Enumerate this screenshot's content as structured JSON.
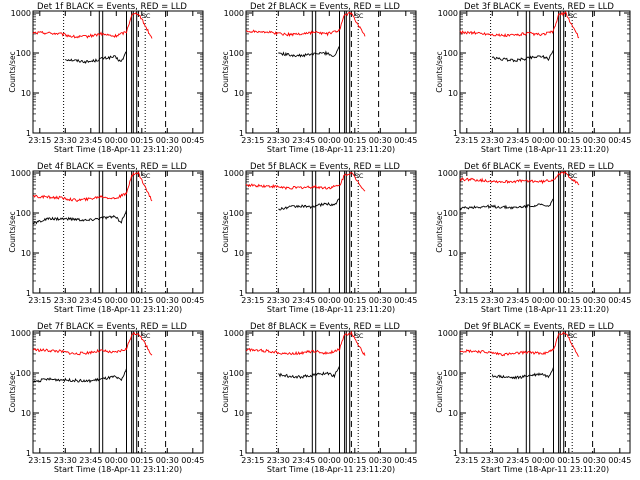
{
  "time_ticks": [
    "23:15",
    "23:30",
    "23:45",
    "00:00",
    "00:15",
    "00:30",
    "00:45"
  ],
  "start_time_label": "Start Time (18-Apr-11 23:11:20)",
  "y_label": "Counts/sec",
  "y_tick_labels": [
    "1",
    "10",
    "100",
    "1000"
  ],
  "sc_label": "SC",
  "colors": {
    "events": "#000000",
    "lld": "#ff0000",
    "frame": "#000000"
  },
  "chart_data": [
    {
      "type": "line",
      "title": "Det 1f BLACK = Events, RED = LLD",
      "xlabel": "Start Time (18-Apr-11 23:11:20)",
      "ylabel": "Counts/sec",
      "x_range_min": [
        0,
        40
      ],
      "ylim": [
        1,
        1000
      ],
      "y_scale": "log",
      "series": [
        {
          "name": "Events",
          "x": [
            19,
            25,
            32,
            37,
            40,
            48,
            52,
            55
          ],
          "values": [
            70,
            65,
            60,
            65,
            72,
            80,
            60,
            110
          ]
        },
        {
          "name": "LLD",
          "x": [
            0,
            8,
            16,
            25,
            32,
            40,
            48,
            55,
            58,
            62,
            70
          ],
          "values": [
            320,
            320,
            300,
            250,
            260,
            300,
            260,
            340,
            900,
            1000,
            230
          ]
        }
      ],
      "markers": {
        "dotted": [
          18,
          66
        ],
        "boxes": [
          [
            39,
            41
          ],
          [
            55,
            58
          ],
          [
            59,
            61
          ]
        ],
        "dashed": [
          62,
          78
        ]
      }
    },
    {
      "type": "line",
      "title": "Det 2f BLACK = Events, RED = LLD",
      "xlabel": "Start Time (18-Apr-11 23:11:20)",
      "ylabel": "Counts/sec",
      "x_range_min": [
        0,
        40
      ],
      "ylim": [
        1,
        1000
      ],
      "y_scale": "log",
      "series": [
        {
          "name": "Events",
          "x": [
            19,
            25,
            32,
            37,
            40,
            48,
            52,
            55
          ],
          "values": [
            100,
            90,
            85,
            90,
            95,
            100,
            80,
            150
          ]
        },
        {
          "name": "LLD",
          "x": [
            0,
            8,
            16,
            25,
            32,
            40,
            48,
            55,
            58,
            62,
            70
          ],
          "values": [
            350,
            350,
            320,
            290,
            300,
            330,
            300,
            370,
            900,
            1000,
            260
          ]
        }
      ],
      "markers": {
        "dotted": [
          18,
          66
        ],
        "boxes": [
          [
            39,
            41
          ],
          [
            55,
            58
          ],
          [
            59,
            61
          ]
        ],
        "dashed": [
          62,
          78
        ]
      }
    },
    {
      "type": "line",
      "title": "Det 3f BLACK = Events, RED = LLD",
      "xlabel": "Start Time (18-Apr-11 23:11:20)",
      "ylabel": "Counts/sec",
      "x_range_min": [
        0,
        40
      ],
      "ylim": [
        1,
        1000
      ],
      "y_scale": "log",
      "series": [
        {
          "name": "Events",
          "x": [
            19,
            25,
            32,
            37,
            40,
            48,
            52,
            55
          ],
          "values": [
            75,
            70,
            65,
            70,
            75,
            85,
            70,
            120
          ]
        },
        {
          "name": "LLD",
          "x": [
            0,
            8,
            16,
            25,
            32,
            40,
            48,
            55,
            58,
            62,
            70
          ],
          "values": [
            330,
            320,
            300,
            270,
            280,
            310,
            280,
            350,
            900,
            1000,
            240
          ]
        }
      ],
      "markers": {
        "dotted": [
          18,
          66
        ],
        "boxes": [
          [
            39,
            41
          ],
          [
            55,
            58
          ],
          [
            59,
            61
          ]
        ],
        "dashed": [
          62,
          78
        ]
      }
    },
    {
      "type": "line",
      "title": "Det 4f BLACK = Events, RED = LLD",
      "xlabel": "Start Time (18-Apr-11 23:11:20)",
      "ylabel": "Counts/sec",
      "x_range_min": [
        0,
        40
      ],
      "ylim": [
        1,
        1000
      ],
      "y_scale": "log",
      "series": [
        {
          "name": "Events",
          "x": [
            0,
            8,
            16,
            25,
            32,
            40,
            48,
            52,
            55
          ],
          "values": [
            55,
            70,
            72,
            70,
            65,
            75,
            80,
            60,
            120
          ]
        },
        {
          "name": "LLD",
          "x": [
            0,
            8,
            16,
            25,
            32,
            40,
            48,
            55,
            58,
            62,
            70
          ],
          "values": [
            260,
            250,
            240,
            210,
            220,
            260,
            230,
            300,
            900,
            1000,
            200
          ]
        }
      ],
      "markers": {
        "dotted": [
          18,
          66
        ],
        "boxes": [
          [
            39,
            41
          ],
          [
            55,
            58
          ],
          [
            59,
            61
          ]
        ],
        "dashed": [
          62,
          78
        ]
      }
    },
    {
      "type": "line",
      "title": "Det 5f BLACK = Events, RED = LLD",
      "xlabel": "Start Time (18-Apr-11 23:11:20)",
      "ylabel": "Counts/sec",
      "x_range_min": [
        0,
        40
      ],
      "ylim": [
        1,
        1000
      ],
      "y_scale": "log",
      "series": [
        {
          "name": "Events",
          "x": [
            19,
            25,
            32,
            37,
            40,
            48,
            52,
            55
          ],
          "values": [
            120,
            140,
            150,
            140,
            150,
            170,
            160,
            220
          ]
        },
        {
          "name": "LLD",
          "x": [
            0,
            8,
            16,
            25,
            32,
            40,
            48,
            55,
            58,
            62,
            70
          ],
          "values": [
            500,
            480,
            460,
            420,
            430,
            450,
            420,
            480,
            900,
            1000,
            350
          ]
        }
      ],
      "markers": {
        "dotted": [
          18,
          66
        ],
        "boxes": [
          [
            39,
            41
          ],
          [
            55,
            58
          ],
          [
            59,
            61
          ]
        ],
        "dashed": [
          62,
          78
        ]
      }
    },
    {
      "type": "line",
      "title": "Det 6f BLACK = Events, RED = LLD",
      "xlabel": "Start Time (18-Apr-11 23:11:20)",
      "ylabel": "Counts/sec",
      "x_range_min": [
        0,
        40
      ],
      "ylim": [
        1,
        1000
      ],
      "y_scale": "log",
      "series": [
        {
          "name": "Events",
          "x": [
            0,
            8,
            16,
            25,
            32,
            40,
            48,
            52,
            55
          ],
          "values": [
            130,
            140,
            145,
            140,
            135,
            150,
            160,
            140,
            230
          ]
        },
        {
          "name": "LLD",
          "x": [
            0,
            8,
            16,
            25,
            32,
            40,
            48,
            55,
            58,
            62,
            70
          ],
          "values": [
            700,
            680,
            640,
            600,
            620,
            640,
            600,
            680,
            950,
            1000,
            500
          ]
        }
      ],
      "markers": {
        "dotted": [
          18,
          66
        ],
        "boxes": [
          [
            39,
            41
          ],
          [
            55,
            58
          ],
          [
            59,
            61
          ]
        ],
        "dashed": [
          62,
          78
        ]
      }
    },
    {
      "type": "line",
      "title": "Det 7f BLACK = Events, RED = LLD",
      "xlabel": "Start Time (18-Apr-11 23:11:20)",
      "ylabel": "Counts/sec",
      "x_range_min": [
        0,
        40
      ],
      "ylim": [
        1,
        1000
      ],
      "y_scale": "log",
      "series": [
        {
          "name": "Events",
          "x": [
            0,
            8,
            16,
            25,
            32,
            40,
            48,
            52,
            55
          ],
          "values": [
            60,
            70,
            68,
            65,
            62,
            70,
            80,
            65,
            130
          ]
        },
        {
          "name": "LLD",
          "x": [
            0,
            8,
            16,
            25,
            32,
            40,
            48,
            55,
            58,
            62,
            70
          ],
          "values": [
            380,
            370,
            350,
            300,
            320,
            360,
            320,
            400,
            900,
            1000,
            280
          ]
        }
      ],
      "markers": {
        "dotted": [
          18,
          66
        ],
        "boxes": [
          [
            39,
            41
          ],
          [
            55,
            58
          ],
          [
            59,
            61
          ]
        ],
        "dashed": [
          62,
          78
        ]
      }
    },
    {
      "type": "line",
      "title": "Det 8f BLACK = Events, RED = LLD",
      "xlabel": "Start Time (18-Apr-11 23:11:20)",
      "ylabel": "Counts/sec",
      "x_range_min": [
        0,
        40
      ],
      "ylim": [
        1,
        1000
      ],
      "y_scale": "log",
      "series": [
        {
          "name": "Events",
          "x": [
            19,
            25,
            32,
            37,
            40,
            48,
            52,
            55
          ],
          "values": [
            90,
            85,
            80,
            85,
            90,
            100,
            85,
            150
          ]
        },
        {
          "name": "LLD",
          "x": [
            0,
            8,
            16,
            25,
            32,
            40,
            48,
            55,
            58,
            62,
            70
          ],
          "values": [
            380,
            370,
            340,
            300,
            320,
            350,
            310,
            390,
            900,
            1000,
            270
          ]
        }
      ],
      "markers": {
        "dotted": [
          18,
          66
        ],
        "boxes": [
          [
            39,
            41
          ],
          [
            55,
            58
          ],
          [
            59,
            61
          ]
        ],
        "dashed": [
          62,
          78
        ]
      }
    },
    {
      "type": "line",
      "title": "Det 9f BLACK = Events, RED = LLD",
      "xlabel": "Start Time (18-Apr-11 23:11:20)",
      "ylabel": "Counts/sec",
      "x_range_min": [
        0,
        40
      ],
      "ylim": [
        1,
        1000
      ],
      "y_scale": "log",
      "series": [
        {
          "name": "Events",
          "x": [
            19,
            25,
            32,
            37,
            40,
            48,
            52,
            55
          ],
          "values": [
            85,
            80,
            75,
            80,
            85,
            95,
            80,
            140
          ]
        },
        {
          "name": "LLD",
          "x": [
            0,
            8,
            16,
            25,
            32,
            40,
            48,
            55,
            58,
            62,
            70
          ],
          "values": [
            360,
            350,
            330,
            290,
            300,
            340,
            300,
            380,
            900,
            1000,
            260
          ]
        }
      ],
      "markers": {
        "dotted": [
          18,
          66
        ],
        "boxes": [
          [
            39,
            41
          ],
          [
            55,
            58
          ],
          [
            59,
            61
          ]
        ],
        "dashed": [
          62,
          78
        ]
      }
    }
  ]
}
